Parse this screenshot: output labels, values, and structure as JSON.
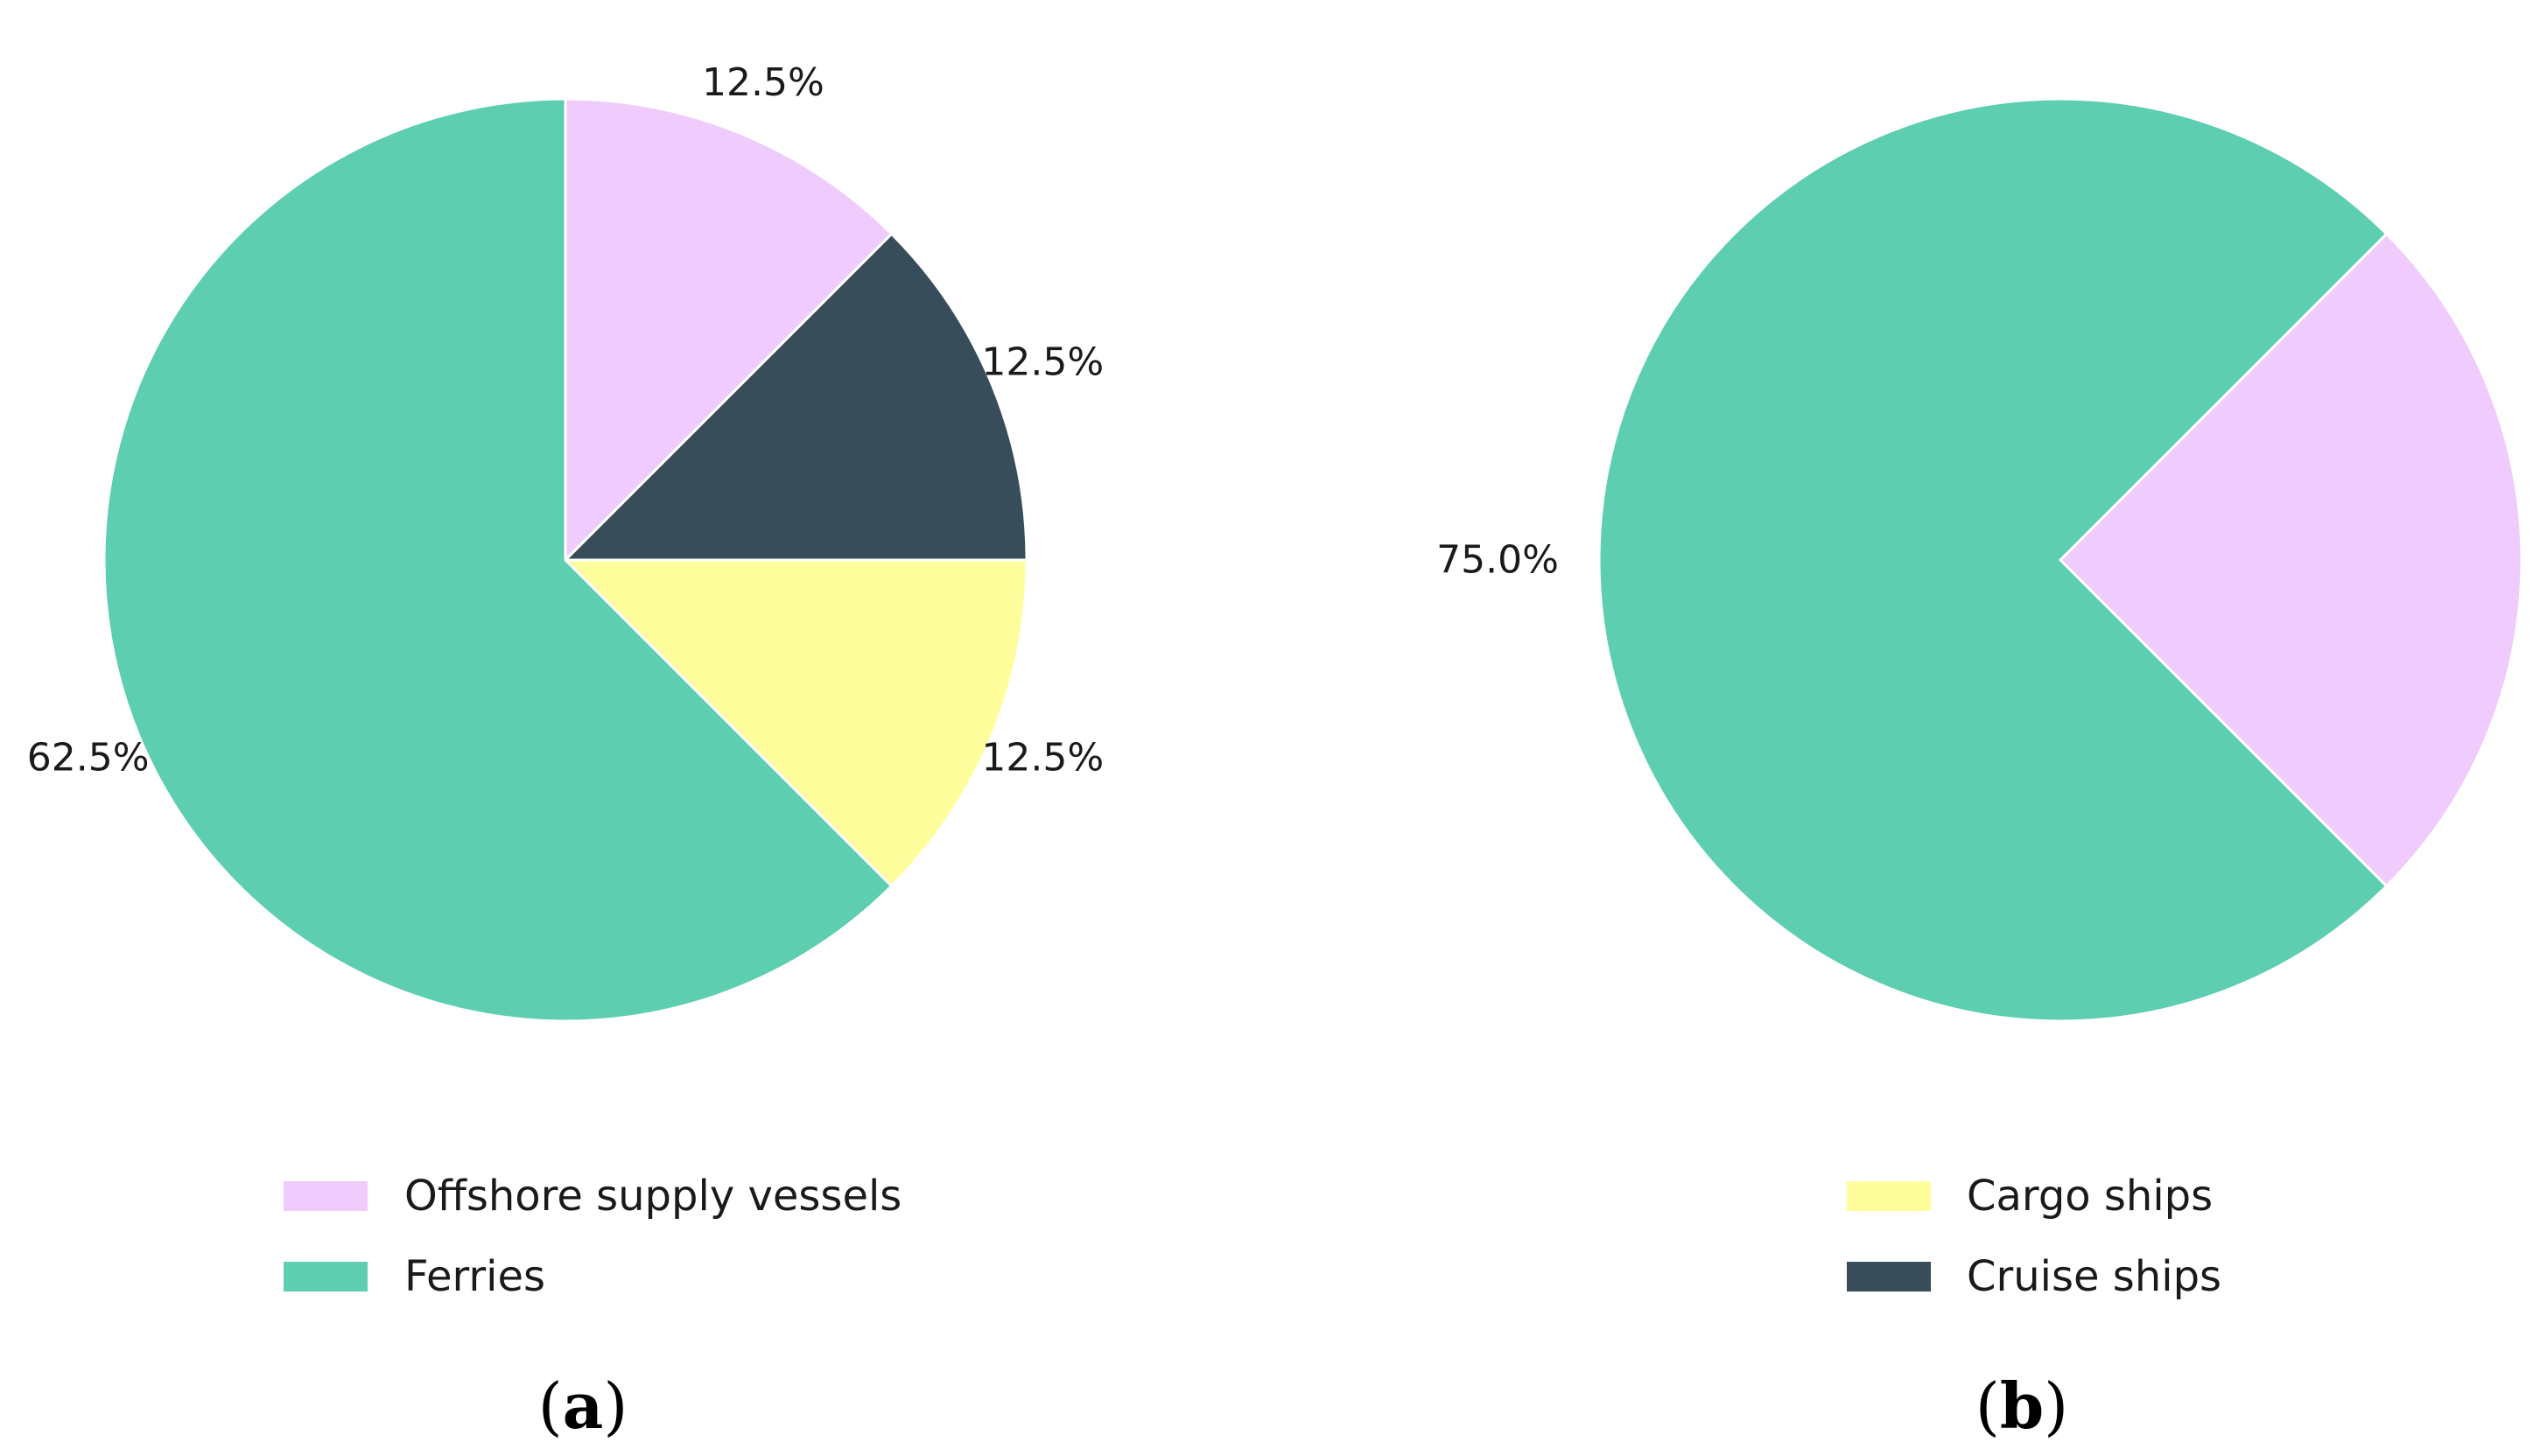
{
  "chart_data": [
    {
      "type": "pie",
      "panel": "(a)",
      "panel_letter": "a",
      "slices": [
        {
          "label": "Offshore supply vessels",
          "value": 12.5,
          "display": "12.5%",
          "color": "#f0cbfd"
        },
        {
          "label": "Cruise ships",
          "value": 12.5,
          "display": "12.5%",
          "color": "#374e5a"
        },
        {
          "label": "Cargo ships",
          "value": 12.5,
          "display": "12.5%",
          "color": "#fffe9c"
        },
        {
          "label": "Ferries",
          "value": 62.5,
          "display": "62.5%",
          "color": "#5dcfb0"
        }
      ],
      "start_angle_deg": 90,
      "direction": "clockwise",
      "legend": {
        "placement": "bottom",
        "entries": [
          {
            "label": "Offshore supply vessels",
            "color": "#f0cbfd"
          },
          {
            "label": "Ferries",
            "color": "#5dcfb0"
          }
        ]
      }
    },
    {
      "type": "pie",
      "panel": "(b)",
      "panel_letter": "b",
      "slices": [
        {
          "label": "Offshore supply vessels",
          "value": 25.0,
          "display": "25.0%",
          "color": "#f0cbfd"
        },
        {
          "label": "Ferries",
          "value": 75.0,
          "display": "75.0%",
          "color": "#5dcfb0"
        }
      ],
      "start_angle_deg": 45,
      "direction": "clockwise",
      "legend": {
        "placement": "bottom",
        "entries": [
          {
            "label": "Cargo ships",
            "color": "#fffe9c"
          },
          {
            "label": "Cruise ships",
            "color": "#374e5a"
          }
        ]
      }
    }
  ]
}
